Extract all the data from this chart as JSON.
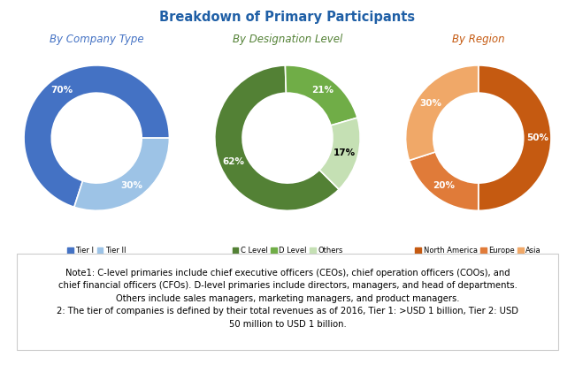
{
  "title": "Breakdown of Primary Participants",
  "title_color": "#1f5fa6",
  "background_color": "#ffffff",
  "charts": [
    {
      "subtitle": "By Company Type",
      "subtitle_color": "#4472c4",
      "values": [
        70,
        30
      ],
      "colors": [
        "#4472c4",
        "#9dc3e6"
      ],
      "labels": [
        "70%",
        "30%"
      ],
      "label_colors": [
        "white",
        "white"
      ],
      "legend_labels": [
        "Tier I",
        "Tier II"
      ],
      "startangle": 252,
      "counterclock": false
    },
    {
      "subtitle": "By Designation Level",
      "subtitle_color": "#538135",
      "values": [
        62,
        21,
        17
      ],
      "colors": [
        "#538135",
        "#70ad47",
        "#c5e0b4"
      ],
      "labels": [
        "62%",
        "21%",
        "17%"
      ],
      "label_colors": [
        "white",
        "white",
        "black"
      ],
      "legend_labels": [
        "C Level",
        "D Level",
        "Others"
      ],
      "startangle": 315,
      "counterclock": false
    },
    {
      "subtitle": "By Region",
      "subtitle_color": "#c55a11",
      "values": [
        50,
        20,
        30
      ],
      "colors": [
        "#c55a11",
        "#e07b39",
        "#f0a868"
      ],
      "labels": [
        "50%",
        "20%",
        "30%"
      ],
      "label_colors": [
        "white",
        "white",
        "white"
      ],
      "legend_labels": [
        "North America",
        "Europe",
        "Asia"
      ],
      "startangle": 90,
      "counterclock": false
    }
  ],
  "note_text": "Note1: C-level primaries include chief executive officers (CEOs), chief operation officers (COOs), and\nchief financial officers (CFOs). D-level primaries include directors, managers, and head of departments.\nOthers include sales managers, marketing managers, and product managers.\n2: The tier of companies is defined by their total revenues as of 2016, Tier 1: >USD 1 billion, Tier 2: USD\n50 million to USD 1 billion.",
  "note_fontsize": 7.2,
  "border_color": "#cccccc"
}
